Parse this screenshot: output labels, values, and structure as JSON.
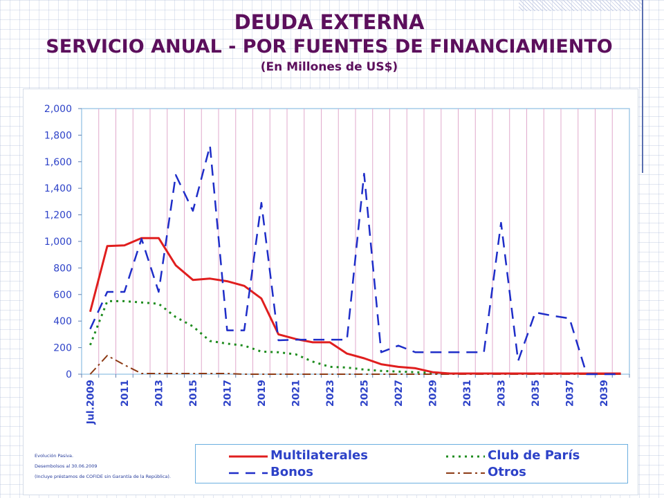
{
  "title": {
    "line1": "DEUDA EXTERNA",
    "line2": "SERVICIO ANUAL - POR FUENTES DE FINANCIAMIENTO",
    "line3": "(En Millones de US$)"
  },
  "chart_data": {
    "type": "line",
    "title": "SERVICIO ANUAL - POR FUENTES DE FINANCIAMIENTO",
    "ylabel": "(En Millones de US$)",
    "xlabel": "",
    "ylim": [
      0,
      2000
    ],
    "yticks": [
      0,
      200,
      400,
      600,
      800,
      1000,
      1200,
      1400,
      1600,
      1800,
      2000
    ],
    "ytick_labels": [
      "0",
      "200",
      "400",
      "600",
      "800",
      "1,000",
      "1,200",
      "1,400",
      "1,600",
      "1,800",
      "2,000"
    ],
    "categories": [
      "Jul.2009",
      "2010",
      "2011",
      "2012",
      "2013",
      "2014",
      "2015",
      "2016",
      "2017",
      "2018",
      "2019",
      "2020",
      "2021",
      "2022",
      "2023",
      "2024",
      "2025",
      "2026",
      "2027",
      "2028",
      "2029",
      "2030",
      "2031",
      "2032",
      "2033",
      "2034",
      "2035",
      "2036",
      "2037",
      "2038",
      "2039",
      "2040"
    ],
    "xtick_labels": [
      "Jul.2009",
      "2011",
      "2013",
      "2015",
      "2017",
      "2019",
      "2021",
      "2023",
      "2025",
      "2027",
      "2029",
      "2031",
      "2033",
      "2035",
      "2037",
      "2039"
    ],
    "xtick_indices": [
      0,
      2,
      4,
      6,
      8,
      10,
      12,
      14,
      16,
      18,
      20,
      22,
      24,
      26,
      28,
      30
    ],
    "grid": true,
    "legend_position": "bottom",
    "series": [
      {
        "name": "Multilaterales",
        "color": "#e01e1e",
        "style": "solid",
        "values": [
          470,
          965,
          970,
          1025,
          1025,
          820,
          710,
          720,
          700,
          665,
          570,
          300,
          265,
          240,
          240,
          155,
          120,
          75,
          55,
          45,
          15,
          5,
          5,
          5,
          5,
          5,
          5,
          5,
          5,
          5,
          5,
          5
        ]
      },
      {
        "name": "Bonos",
        "color": "#1e2dc8",
        "style": "dash",
        "values": [
          340,
          620,
          620,
          1020,
          620,
          1500,
          1230,
          1720,
          330,
          330,
          1290,
          255,
          260,
          260,
          260,
          260,
          1510,
          165,
          215,
          165,
          165,
          165,
          165,
          165,
          1140,
          100,
          465,
          440,
          420,
          0,
          0,
          0
        ]
      },
      {
        "name": "Club de París",
        "color": "#1e8c1e",
        "style": "dot",
        "values": [
          220,
          550,
          550,
          540,
          530,
          430,
          360,
          250,
          230,
          215,
          170,
          165,
          150,
          95,
          55,
          50,
          35,
          25,
          20,
          15,
          10,
          5,
          5,
          5,
          5,
          5,
          5,
          5,
          5,
          5,
          5,
          5
        ]
      },
      {
        "name": "Otros",
        "color": "#8c3a14",
        "style": "dashdot",
        "values": [
          0,
          140,
          70,
          5,
          5,
          5,
          5,
          5,
          5,
          0,
          0,
          0,
          0,
          0,
          0,
          0,
          0,
          0,
          0,
          0,
          0,
          0,
          0,
          0,
          0,
          0,
          0,
          0,
          0,
          0,
          0,
          0
        ]
      }
    ]
  },
  "legend": {
    "items": [
      {
        "label": "Multilaterales"
      },
      {
        "label": "Club de París"
      },
      {
        "label": "Bonos"
      },
      {
        "label": "Otros"
      }
    ]
  },
  "footnote": {
    "line1": "Evolución Pasiva.",
    "line2": "Desembolsos al 30.06.2009",
    "line3": "(Incluye préstamos de COFIDE sin Garantía de la República)."
  },
  "colors": {
    "title": "#5c0f5c",
    "axis_text": "#2d42c8",
    "grid_vertical": "#e0a8cc",
    "plot_border": "#a4cbe8"
  }
}
